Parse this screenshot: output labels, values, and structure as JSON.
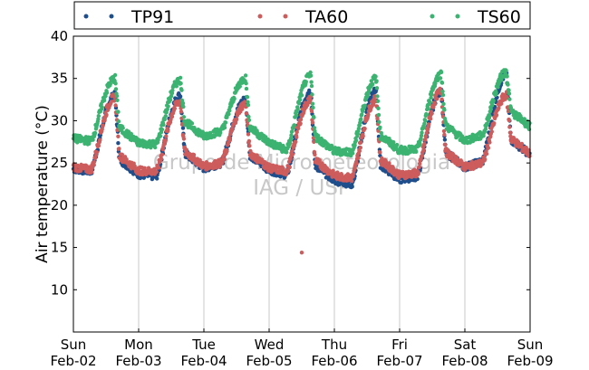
{
  "chart_data": {
    "type": "scatter",
    "title": "",
    "xlabel": "",
    "ylabel": "Air temperature (°C)",
    "ylim": [
      5,
      40
    ],
    "yticks": [
      10,
      15,
      20,
      25,
      30,
      35,
      40
    ],
    "xlim": [
      "2025-02-02",
      "2025-02-09"
    ],
    "xtick_labels": [
      {
        "day": "Sun",
        "date": "Feb-02"
      },
      {
        "day": "Mon",
        "date": "Feb-03"
      },
      {
        "day": "Tue",
        "date": "Feb-04"
      },
      {
        "day": "Wed",
        "date": "Feb-05"
      },
      {
        "day": "Thu",
        "date": "Feb-06"
      },
      {
        "day": "Fri",
        "date": "Feb-07"
      },
      {
        "day": "Sat",
        "date": "Feb-08"
      },
      {
        "day": "Sun",
        "date": "Feb-09"
      }
    ],
    "grid": "vertical",
    "legend_position": "top",
    "watermark": [
      "Grupo de Micrometeorologia",
      "IAG / USP"
    ],
    "series": [
      {
        "name": "TP91",
        "color": "#1f4e8c",
        "daily_min": [
          24.0,
          23.4,
          25.0,
          23.6,
          22.5,
          23.4,
          25.2
        ],
        "daily_max": [
          33.0,
          33.0,
          32.5,
          33.5,
          33.5,
          33.5,
          35.5
        ],
        "end_value": 26.5
      },
      {
        "name": "TA60",
        "color": "#cd5c5c",
        "daily_min": [
          24.2,
          24.0,
          25.0,
          24.0,
          23.2,
          23.8,
          25.0
        ],
        "daily_max": [
          32.8,
          32.3,
          32.0,
          32.5,
          32.5,
          33.5,
          33.0
        ],
        "end_value": 26.8,
        "outliers": [
          {
            "x": "2025-02-05 12:00",
            "y": 14.4
          }
        ]
      },
      {
        "name": "TS60",
        "color": "#3cb371",
        "daily_min": [
          27.6,
          27.2,
          28.8,
          26.5,
          26.3,
          26.6,
          28.3
        ],
        "daily_max": [
          35.0,
          34.8,
          35.0,
          35.3,
          35.0,
          35.5,
          35.8
        ],
        "end_value": 30.0
      }
    ]
  }
}
